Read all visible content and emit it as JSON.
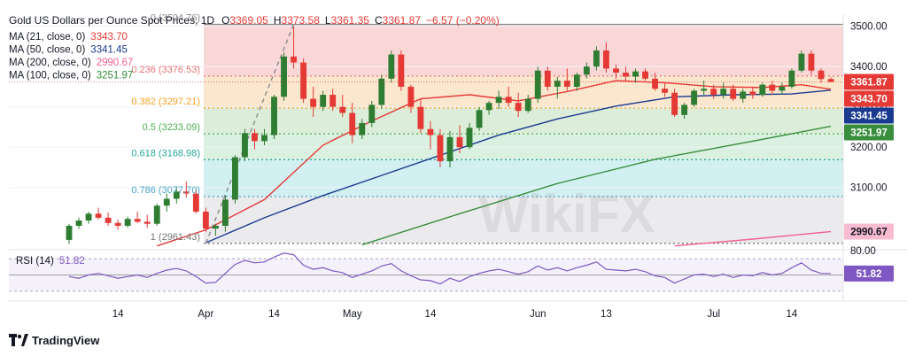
{
  "header": {
    "symbol": "Gold US Dollars per Ounce Spot Prices, 1D",
    "open_label": "O",
    "open": "3369.05",
    "high_label": "H",
    "high": "3373.58",
    "low_label": "L",
    "low": "3361.35",
    "close_label": "C",
    "close": "3361.87",
    "change": "−6.57 (−0.20%)"
  },
  "legend": [
    {
      "label": "MA (21, close, 0)",
      "value": "3343.70",
      "color": "#e53935"
    },
    {
      "label": "MA (50, close, 0)",
      "value": "3341.45",
      "color": "#1a3a8f"
    },
    {
      "label": "MA (200, close, 0)",
      "value": "2990.67",
      "color": "#f06292"
    },
    {
      "label": "MA (100, close, 0)",
      "value": "3251.97",
      "color": "#388e3c"
    }
  ],
  "rsi": {
    "label": "RSI (14)",
    "value": "51.82",
    "color": "#7e57c2"
  },
  "footer": {
    "brand": "TradingView"
  },
  "watermark": "WikiFX",
  "icons": {
    "brand_logo": "tradingview-logo-icon"
  },
  "colors": {
    "up": "#26a69a",
    "up_body": "#2e7d32",
    "down": "#e53935",
    "ma21": "#e53935",
    "ma50": "#1a3a8f",
    "ma100": "#388e3c",
    "ma200": "#f06292",
    "rsi": "#7e57c2",
    "last_price": "#e53935"
  },
  "chart_data": {
    "type": "candlestick",
    "title": "Gold US Dollars per Ounce Spot Prices, 1D",
    "ylim": [
      2950,
      3530
    ],
    "y_ticks": [
      {
        "value": 3500,
        "label": "3500.00"
      },
      {
        "value": 3400,
        "label": "3400.00"
      },
      {
        "value": 3300,
        "label": "3300.00"
      },
      {
        "value": 3200,
        "label": "3200.00"
      },
      {
        "value": 3100,
        "label": "3100.00"
      }
    ],
    "x_ticks": [
      {
        "i": 5,
        "label": "14"
      },
      {
        "i": 14,
        "label": "Apr"
      },
      {
        "i": 21,
        "label": "14"
      },
      {
        "i": 29,
        "label": "May"
      },
      {
        "i": 37,
        "label": "14"
      },
      {
        "i": 48,
        "label": "Jun"
      },
      {
        "i": 55,
        "label": "13"
      },
      {
        "i": 66,
        "label": "Jul"
      },
      {
        "i": 74,
        "label": "14"
      }
    ],
    "fib_levels": [
      {
        "ratio": "0",
        "value": 3504.76,
        "label": "0 (3504.76)",
        "color": "#8a8a8a",
        "band": "#f9d3d3"
      },
      {
        "ratio": "0.236",
        "value": 3376.53,
        "label": "0.236 (3376.53)",
        "color": "#e57373",
        "band": "#fbe3c9"
      },
      {
        "ratio": "0.382",
        "value": 3297.21,
        "label": "0.382 (3297.21)",
        "color": "#f7a223",
        "band": "#d8ecd5"
      },
      {
        "ratio": "0.5",
        "value": 3233.09,
        "label": "0.5 (3233.09)",
        "color": "#4caf50",
        "band": "#d6eedd"
      },
      {
        "ratio": "0.618",
        "value": 3168.98,
        "label": "0.618 (3168.98)",
        "color": "#26a69a",
        "band": "#cdeef1"
      },
      {
        "ratio": "0.786",
        "value": 3077.7,
        "label": "0.786 (3077.70)",
        "color": "#4aa5c9",
        "band": "#e9e9ec"
      },
      {
        "ratio": "1",
        "value": 2961.43,
        "label": "1 (2961.43)",
        "color": "#757575",
        "band": null
      }
    ],
    "candles": [
      [
        2970,
        3010,
        2960,
        3005
      ],
      [
        3005,
        3025,
        2998,
        3018
      ],
      [
        3018,
        3040,
        3010,
        3035
      ],
      [
        3035,
        3050,
        3020,
        3025
      ],
      [
        3025,
        3038,
        3005,
        3012
      ],
      [
        3012,
        3020,
        2995,
        3005
      ],
      [
        3005,
        3028,
        3000,
        3022
      ],
      [
        3022,
        3040,
        3012,
        3015
      ],
      [
        3015,
        3032,
        3000,
        3010
      ],
      [
        3010,
        3060,
        3005,
        3055
      ],
      [
        3055,
        3085,
        3040,
        3072
      ],
      [
        3072,
        3100,
        3060,
        3090
      ],
      [
        3090,
        3115,
        3075,
        3085
      ],
      [
        3085,
        3098,
        3035,
        3040
      ],
      [
        3040,
        3050,
        2990,
        2998
      ],
      [
        2998,
        3010,
        2980,
        3005
      ],
      [
        3005,
        3080,
        2990,
        3070
      ],
      [
        3070,
        3180,
        3060,
        3175
      ],
      [
        3175,
        3245,
        3165,
        3235
      ],
      [
        3235,
        3245,
        3195,
        3215
      ],
      [
        3215,
        3245,
        3205,
        3230
      ],
      [
        3230,
        3330,
        3220,
        3325
      ],
      [
        3325,
        3435,
        3315,
        3425
      ],
      [
        3425,
        3500,
        3395,
        3410
      ],
      [
        3410,
        3420,
        3310,
        3320
      ],
      [
        3320,
        3350,
        3275,
        3300
      ],
      [
        3300,
        3340,
        3290,
        3330
      ],
      [
        3330,
        3345,
        3290,
        3300
      ],
      [
        3300,
        3330,
        3275,
        3285
      ],
      [
        3285,
        3310,
        3210,
        3230
      ],
      [
        3230,
        3270,
        3220,
        3260
      ],
      [
        3260,
        3315,
        3250,
        3305
      ],
      [
        3305,
        3380,
        3295,
        3370
      ],
      [
        3370,
        3440,
        3360,
        3430
      ],
      [
        3430,
        3440,
        3340,
        3350
      ],
      [
        3350,
        3355,
        3285,
        3300
      ],
      [
        3300,
        3320,
        3235,
        3245
      ],
      [
        3245,
        3265,
        3195,
        3230
      ],
      [
        3230,
        3245,
        3150,
        3165
      ],
      [
        3165,
        3240,
        3150,
        3225
      ],
      [
        3225,
        3255,
        3185,
        3200
      ],
      [
        3200,
        3260,
        3195,
        3248
      ],
      [
        3248,
        3300,
        3240,
        3292
      ],
      [
        3292,
        3315,
        3280,
        3310
      ],
      [
        3310,
        3340,
        3295,
        3325
      ],
      [
        3325,
        3350,
        3300,
        3310
      ],
      [
        3310,
        3335,
        3275,
        3290
      ],
      [
        3290,
        3330,
        3285,
        3320
      ],
      [
        3320,
        3400,
        3310,
        3390
      ],
      [
        3390,
        3400,
        3340,
        3350
      ],
      [
        3350,
        3375,
        3320,
        3365
      ],
      [
        3365,
        3395,
        3340,
        3350
      ],
      [
        3350,
        3385,
        3340,
        3380
      ],
      [
        3380,
        3410,
        3370,
        3400
      ],
      [
        3400,
        3450,
        3390,
        3440
      ],
      [
        3440,
        3460,
        3385,
        3395
      ],
      [
        3395,
        3405,
        3370,
        3385
      ],
      [
        3385,
        3400,
        3365,
        3375
      ],
      [
        3375,
        3395,
        3360,
        3388
      ],
      [
        3388,
        3395,
        3365,
        3370
      ],
      [
        3370,
        3385,
        3340,
        3345
      ],
      [
        3345,
        3360,
        3325,
        3335
      ],
      [
        3335,
        3345,
        3275,
        3280
      ],
      [
        3280,
        3310,
        3270,
        3305
      ],
      [
        3305,
        3345,
        3300,
        3340
      ],
      [
        3340,
        3365,
        3330,
        3345
      ],
      [
        3345,
        3355,
        3320,
        3330
      ],
      [
        3330,
        3360,
        3320,
        3345
      ],
      [
        3345,
        3355,
        3315,
        3320
      ],
      [
        3320,
        3345,
        3310,
        3338
      ],
      [
        3338,
        3350,
        3320,
        3330
      ],
      [
        3330,
        3360,
        3325,
        3355
      ],
      [
        3355,
        3365,
        3330,
        3340
      ],
      [
        3340,
        3360,
        3330,
        3350
      ],
      [
        3350,
        3395,
        3345,
        3390
      ],
      [
        3390,
        3440,
        3385,
        3432
      ],
      [
        3432,
        3440,
        3380,
        3390
      ],
      [
        3390,
        3395,
        3360,
        3369
      ],
      [
        3369.05,
        3373.58,
        3361.35,
        3361.87
      ]
    ],
    "ma21": [
      [
        9,
        2955
      ],
      [
        14,
        2995
      ],
      [
        20,
        3070
      ],
      [
        26,
        3205
      ],
      [
        31,
        3265
      ],
      [
        36,
        3320
      ],
      [
        41,
        3330
      ],
      [
        46,
        3315
      ],
      [
        51,
        3338
      ],
      [
        56,
        3365
      ],
      [
        61,
        3360
      ],
      [
        66,
        3350
      ],
      [
        71,
        3348
      ],
      [
        75,
        3355
      ],
      [
        78,
        3343.7
      ]
    ],
    "ma50": [
      [
        14,
        2963
      ],
      [
        20,
        3025
      ],
      [
        26,
        3080
      ],
      [
        32,
        3130
      ],
      [
        38,
        3180
      ],
      [
        44,
        3230
      ],
      [
        50,
        3270
      ],
      [
        56,
        3302
      ],
      [
        62,
        3325
      ],
      [
        68,
        3330
      ],
      [
        74,
        3332
      ],
      [
        78,
        3341.45
      ]
    ],
    "ma100": [
      [
        30,
        2958
      ],
      [
        40,
        3035
      ],
      [
        50,
        3110
      ],
      [
        60,
        3170
      ],
      [
        70,
        3215
      ],
      [
        78,
        3251.97
      ]
    ],
    "ma200": [
      [
        62,
        2955
      ],
      [
        70,
        2972
      ],
      [
        78,
        2990.67
      ]
    ],
    "rsi_ylim": [
      20,
      80
    ],
    "rsi_ticks": [
      {
        "value": 80,
        "label": "80.00"
      }
    ],
    "rsi_levels": [
      70,
      50,
      30
    ],
    "rsi_values": [
      48,
      46,
      50,
      52,
      49,
      46,
      48,
      50,
      47,
      52,
      56,
      58,
      55,
      48,
      40,
      41,
      52,
      63,
      68,
      65,
      66,
      72,
      77,
      75,
      62,
      57,
      59,
      55,
      53,
      47,
      51,
      55,
      61,
      64,
      55,
      49,
      44,
      43,
      39,
      46,
      42,
      48,
      52,
      55,
      57,
      54,
      51,
      54,
      61,
      56,
      59,
      55,
      59,
      62,
      66,
      57,
      56,
      55,
      57,
      54,
      49,
      47,
      40,
      45,
      50,
      51,
      48,
      51,
      47,
      50,
      49,
      53,
      50,
      52,
      59,
      65,
      56,
      52,
      51.82
    ],
    "price_tags": [
      {
        "label": "3361.87",
        "value": 3361.87,
        "bg": "#e53935",
        "color": "#ffffff"
      },
      {
        "label": "3343.70",
        "value": 3343.7,
        "bg": "#e53935",
        "color": "#ffffff"
      },
      {
        "label": "3341.45",
        "value": 3341.45,
        "bg": "#1a3a8f",
        "color": "#ffffff"
      },
      {
        "label": "3251.97",
        "value": 3251.97,
        "bg": "#388e3c",
        "color": "#ffffff"
      },
      {
        "label": "2990.67",
        "value": 2990.67,
        "bg": "#f8bbd0",
        "color": "#131722"
      }
    ],
    "rsi_tag": {
      "label": "51.82",
      "bg": "#7e57c2",
      "color": "#ffffff"
    }
  }
}
